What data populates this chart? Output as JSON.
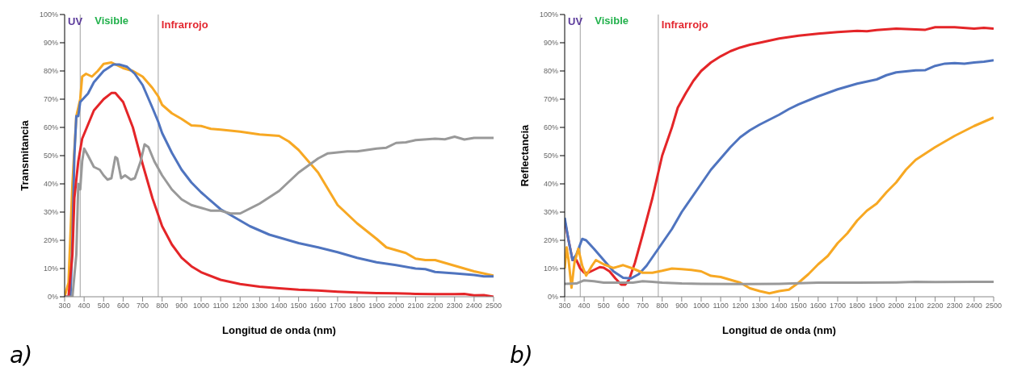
{
  "chart_data": [
    {
      "type": "line",
      "ylabel": "Transmitancia",
      "xlabel": "Longitud de onda (nm)",
      "annotations": [
        "a)",
        "UV",
        "Visible",
        "Infrarrojo"
      ],
      "xlim": [
        300,
        2500
      ],
      "xticks": [
        300,
        400,
        500,
        600,
        700,
        800,
        900,
        1000,
        1100,
        1200,
        1300,
        1400,
        1500,
        1600,
        1700,
        1800,
        1900,
        2000,
        2100,
        2200,
        2300,
        2400,
        2500
      ],
      "ylim": [
        0,
        100
      ],
      "yticks": [
        {
          "value": 0,
          "label": "0%"
        },
        {
          "value": 10,
          "label": "10%"
        },
        {
          "value": 20,
          "label": "20%"
        },
        {
          "value": 30,
          "label": "30%"
        },
        {
          "value": 40,
          "label": "40%"
        },
        {
          "value": 50,
          "label": "50%"
        },
        {
          "value": 60,
          "label": "60%"
        },
        {
          "value": 70,
          "label": "70%"
        },
        {
          "value": 80,
          "label": "80%"
        },
        {
          "value": 90,
          "label": "90%"
        },
        {
          "value": 100,
          "label": "100%"
        }
      ],
      "grid": false,
      "legend": false,
      "marker": "none",
      "line_style": "solid",
      "ref_lines": [
        {
          "axis": "x",
          "value": 380,
          "color": "#b0b0b0"
        },
        {
          "axis": "x",
          "value": 780,
          "color": "#b0b0b0"
        }
      ],
      "series": [
        {
          "color": "#f7a823",
          "x": [
            300,
            320,
            340,
            360,
            380,
            390,
            410,
            440,
            470,
            500,
            540,
            600,
            650,
            700,
            750,
            780,
            800,
            850,
            900,
            950,
            1000,
            1050,
            1100,
            1200,
            1300,
            1400,
            1450,
            1500,
            1550,
            1600,
            1700,
            1800,
            1900,
            1950,
            2000,
            2050,
            2100,
            2150,
            2200,
            2300,
            2400,
            2500
          ],
          "values": [
            0,
            5,
            40,
            64,
            70,
            78,
            79,
            78,
            80,
            82.5,
            83,
            81,
            80,
            78,
            74,
            71,
            68,
            65,
            63,
            60.7,
            60.5,
            59.5,
            59.2,
            58.5,
            57.5,
            57,
            55,
            52,
            48,
            44,
            32.5,
            26,
            20.5,
            17.5,
            16.5,
            15.5,
            13.5,
            13,
            13,
            11,
            9,
            7.5
          ]
        },
        {
          "color": "#4f74bf",
          "x": [
            300,
            330,
            340,
            350,
            360,
            370,
            380,
            400,
            420,
            450,
            500,
            550,
            580,
            620,
            660,
            700,
            750,
            780,
            800,
            850,
            900,
            950,
            1000,
            1100,
            1200,
            1250,
            1300,
            1350,
            1400,
            1500,
            1600,
            1700,
            1800,
            1900,
            2000,
            2100,
            2150,
            2200,
            2300,
            2400,
            2450,
            2500
          ],
          "values": [
            0,
            0,
            20,
            50,
            64,
            64,
            69,
            70.5,
            72,
            76,
            80,
            82.3,
            82.3,
            81.5,
            79,
            75,
            67,
            62,
            58,
            51,
            45,
            40.5,
            37,
            31,
            27,
            25,
            23.5,
            22,
            21,
            19,
            17.5,
            15.8,
            13.8,
            12.2,
            11.2,
            10,
            9.8,
            8.8,
            8.3,
            7.7,
            7.2,
            7.2
          ]
        },
        {
          "color": "#e42528",
          "x": [
            300,
            320,
            340,
            350,
            370,
            390,
            420,
            450,
            500,
            540,
            560,
            600,
            650,
            700,
            750,
            780,
            800,
            850,
            900,
            950,
            1000,
            1100,
            1200,
            1300,
            1400,
            1500,
            1600,
            1700,
            1800,
            1900,
            2000,
            2100,
            2200,
            2300,
            2350,
            2400,
            2450,
            2500
          ],
          "values": [
            0,
            0,
            15,
            35,
            48,
            56,
            61,
            66,
            70,
            72.2,
            72.2,
            69,
            60,
            47,
            35,
            29,
            25,
            18.5,
            13.8,
            10.8,
            8.7,
            6,
            4.5,
            3.6,
            3,
            2.5,
            2.2,
            1.8,
            1.5,
            1.3,
            1.2,
            1,
            0.9,
            0.9,
            1,
            0.5,
            0.6,
            0
          ]
        },
        {
          "color": "#999999",
          "x": [
            300,
            340,
            360,
            370,
            380,
            390,
            400,
            420,
            450,
            480,
            500,
            520,
            540,
            560,
            570,
            590,
            610,
            640,
            660,
            690,
            710,
            730,
            760,
            800,
            850,
            900,
            950,
            1000,
            1050,
            1100,
            1150,
            1200,
            1300,
            1400,
            1500,
            1600,
            1650,
            1750,
            1800,
            1900,
            1950,
            2000,
            2050,
            2100,
            2200,
            2250,
            2300,
            2350,
            2400,
            2500
          ],
          "values": [
            0,
            0,
            15,
            40,
            38,
            48,
            52.5,
            50,
            46,
            45,
            43,
            41.5,
            42,
            49.5,
            49,
            42,
            43,
            41.5,
            42,
            48,
            54,
            53,
            48,
            43,
            38,
            34.5,
            32.5,
            31.5,
            30.5,
            30.5,
            29.5,
            29.5,
            33,
            37.5,
            44,
            49,
            50.8,
            51.5,
            51.5,
            52.5,
            52.8,
            54.5,
            54.7,
            55.5,
            56,
            55.8,
            56.7,
            55.7,
            56.3,
            56.3
          ]
        }
      ]
    },
    {
      "type": "line",
      "ylabel": "Reflectancia",
      "xlabel": "Longitud de onda (nm)",
      "annotations": [
        "b)",
        "UV",
        "Visible",
        "Infrarrojo"
      ],
      "xlim": [
        300,
        2500
      ],
      "xticks": [
        300,
        400,
        500,
        600,
        700,
        800,
        900,
        1000,
        1100,
        1200,
        1300,
        1400,
        1500,
        1600,
        1700,
        1800,
        1900,
        2000,
        2100,
        2200,
        2300,
        2400,
        2500
      ],
      "ylim": [
        0,
        100
      ],
      "yticks": [
        {
          "value": 0,
          "label": "0%"
        },
        {
          "value": 10,
          "label": "10%"
        },
        {
          "value": 20,
          "label": "20%"
        },
        {
          "value": 30,
          "label": "30%"
        },
        {
          "value": 40,
          "label": "40%"
        },
        {
          "value": 50,
          "label": "50%"
        },
        {
          "value": 60,
          "label": "60%"
        },
        {
          "value": 70,
          "label": "70%"
        },
        {
          "value": 80,
          "label": "80%"
        },
        {
          "value": 90,
          "label": "90%"
        },
        {
          "value": 100,
          "label": "100%"
        }
      ],
      "grid": false,
      "legend": false,
      "marker": "none",
      "line_style": "solid",
      "ref_lines": [
        {
          "axis": "x",
          "value": 380,
          "color": "#b0b0b0"
        },
        {
          "axis": "x",
          "value": 780,
          "color": "#b0b0b0"
        }
      ],
      "series": [
        {
          "color": "#e42528",
          "x": [
            300,
            320,
            340,
            360,
            380,
            400,
            420,
            450,
            480,
            500,
            530,
            560,
            590,
            610,
            630,
            660,
            700,
            750,
            780,
            800,
            850,
            880,
            920,
            960,
            1000,
            1050,
            1100,
            1150,
            1200,
            1250,
            1300,
            1400,
            1500,
            1600,
            1700,
            1800,
            1850,
            1900,
            2000,
            2100,
            2150,
            2200,
            2300,
            2400,
            2450,
            2500
          ],
          "values": [
            27,
            20,
            13,
            13,
            10,
            8.5,
            8.5,
            9.5,
            10.5,
            10.3,
            9,
            6.5,
            4.3,
            4.3,
            6,
            12,
            22,
            35,
            44,
            50,
            60,
            67,
            72,
            76.5,
            80,
            83,
            85.2,
            87,
            88.3,
            89.3,
            90,
            91.5,
            92.5,
            93.2,
            93.8,
            94.2,
            94.1,
            94.5,
            95,
            94.7,
            94.6,
            95.5,
            95.5,
            95,
            95.3,
            95
          ]
        },
        {
          "color": "#4f74bf",
          "x": [
            300,
            320,
            340,
            360,
            390,
            410,
            450,
            500,
            550,
            600,
            640,
            680,
            720,
            780,
            850,
            900,
            1000,
            1050,
            1100,
            1150,
            1200,
            1250,
            1300,
            1400,
            1450,
            1500,
            1600,
            1700,
            1800,
            1900,
            1950,
            2000,
            2100,
            2150,
            2200,
            2250,
            2300,
            2350,
            2400,
            2450,
            2500
          ],
          "values": [
            28,
            20,
            13,
            15,
            20.5,
            20,
            17,
            13,
            9,
            6.7,
            6.5,
            8,
            11,
            17,
            24,
            30,
            40,
            45,
            49,
            53,
            56.5,
            59,
            61,
            64.5,
            66.5,
            68.2,
            71,
            73.5,
            75.5,
            77,
            78.5,
            79.5,
            80.2,
            80.3,
            81.8,
            82.6,
            82.8,
            82.6,
            83,
            83.3,
            83.8
          ]
        },
        {
          "color": "#f7a823",
          "x": [
            300,
            310,
            320,
            335,
            350,
            370,
            390,
            410,
            440,
            460,
            500,
            550,
            600,
            650,
            700,
            750,
            800,
            850,
            900,
            950,
            1000,
            1050,
            1100,
            1150,
            1200,
            1250,
            1300,
            1350,
            1400,
            1450,
            1500,
            1550,
            1600,
            1650,
            1700,
            1750,
            1800,
            1850,
            1900,
            1950,
            2000,
            2050,
            2100,
            2200,
            2300,
            2400,
            2500
          ],
          "values": [
            10,
            17.5,
            13,
            3.2,
            12,
            17,
            11,
            7.5,
            11,
            13,
            11.5,
            10.2,
            11.2,
            10,
            8.5,
            8.5,
            9.2,
            10,
            9.8,
            9.5,
            9,
            7.4,
            7,
            6,
            5,
            3,
            2,
            1.2,
            2,
            2.5,
            5,
            8,
            11.5,
            14.5,
            19,
            22.5,
            27,
            30.5,
            33,
            37,
            40.5,
            45,
            48.5,
            53,
            57,
            60.5,
            63.5
          ]
        },
        {
          "color": "#999999",
          "x": [
            300,
            360,
            400,
            450,
            500,
            600,
            650,
            700,
            750,
            800,
            900,
            1000,
            1200,
            1400,
            1600,
            1800,
            2000,
            2100,
            2200,
            2400,
            2500
          ],
          "values": [
            4.6,
            4.7,
            5.8,
            5.5,
            5,
            5,
            5,
            5.5,
            5.3,
            5,
            4.7,
            4.6,
            4.5,
            4.6,
            5,
            5,
            5.1,
            5.3,
            5.2,
            5.3,
            5.3
          ]
        }
      ]
    }
  ]
}
